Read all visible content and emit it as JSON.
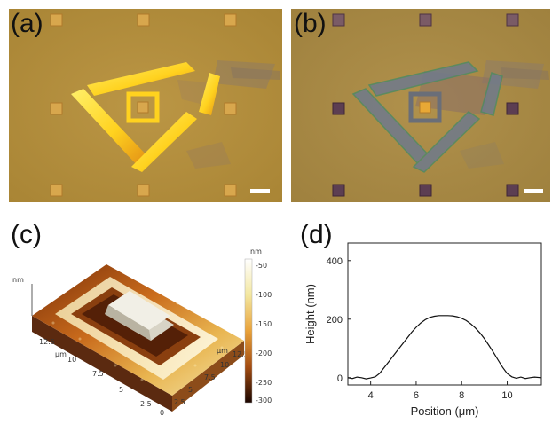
{
  "panels": {
    "a": {
      "label": "(a)"
    },
    "b": {
      "label": "(b)"
    },
    "c": {
      "label": "(c)"
    },
    "d": {
      "label": "(d)"
    }
  },
  "colors": {
    "substrate_a": "#b38e3e",
    "substrate_b": "#a98a45",
    "flake_bright": "#ffd21f",
    "flake_dim": "#6f7a8c",
    "pad_gold": "#d8a74d",
    "pad_dark": "#5c3e52"
  },
  "afm": {
    "colorbar_unit": "nm",
    "colorbar_ticks": [
      "-50",
      "-100",
      "-150",
      "-200",
      "-250",
      "-300"
    ],
    "x_unit": "μm",
    "x_ticks": [
      "0",
      "2.5",
      "5",
      "7.5",
      "10",
      "12.5"
    ],
    "y_ticks": [
      "2.5",
      "5",
      "7.5",
      "10",
      "12.5"
    ],
    "y_unit": "μm",
    "z_unit": "nm"
  },
  "chart_data": {
    "type": "line",
    "title": "",
    "xlabel": "Position (μm)",
    "ylabel": "Height (nm)",
    "xlim": [
      3,
      11.5
    ],
    "ylim": [
      -25,
      460
    ],
    "x_ticks": [
      4,
      6,
      8,
      10
    ],
    "y_ticks": [
      0,
      200,
      400
    ],
    "grid": false,
    "series": [
      {
        "x": [
          3.0,
          3.2,
          3.4,
          3.6,
          3.8,
          4.0,
          4.2,
          4.4,
          4.6,
          4.8,
          5.0,
          5.2,
          5.4,
          5.6,
          5.8,
          6.0,
          6.2,
          6.4,
          6.6,
          6.8,
          7.0,
          7.2,
          7.4,
          7.6,
          7.8,
          8.0,
          8.2,
          8.4,
          8.6,
          8.8,
          9.0,
          9.2,
          9.4,
          9.6,
          9.8,
          10.0,
          10.2,
          10.4,
          10.6,
          10.8,
          11.0,
          11.2,
          11.5
        ],
        "y": [
          0,
          -3,
          2,
          0,
          -4,
          -1,
          3,
          15,
          35,
          55,
          75,
          95,
          115,
          135,
          155,
          172,
          187,
          198,
          206,
          210,
          212,
          212,
          212,
          211,
          208,
          203,
          195,
          184,
          170,
          153,
          133,
          110,
          86,
          60,
          35,
          14,
          3,
          -2,
          2,
          -3,
          0,
          2,
          0
        ]
      }
    ]
  }
}
